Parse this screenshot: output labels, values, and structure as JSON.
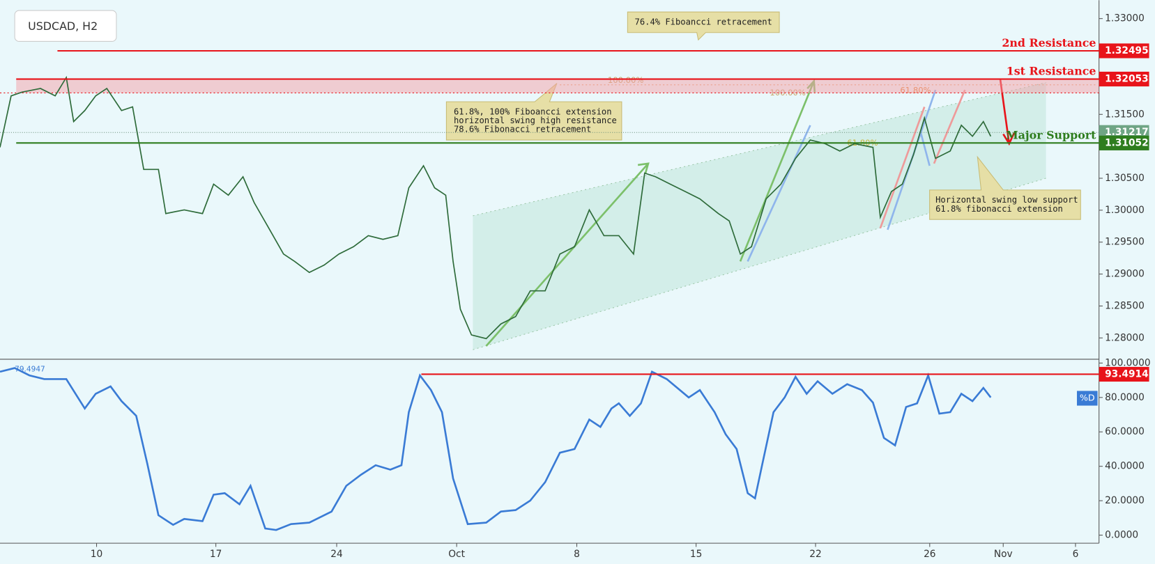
{
  "title": "USDCAD, H2",
  "annotations": [
    "76.4% Fiboancci retracement",
    "61.8%, 100% Fiboancci extension",
    "horizontal swing high resistance",
    "78.6% Fibonacci retracement",
    "Horizontal swing low support",
    "61.8% fibonacci extension"
  ],
  "fib_labels": [
    "100.00%",
    "100.00%",
    "61.80%",
    "61.80%"
  ],
  "chart_data": [
    {
      "type": "line",
      "xlim": [
        0,
        64.22
      ],
      "ylim": [
        1.27666,
        1.33288
      ],
      "yticks": [
        {
          "value": 1.28,
          "label": "1.28000"
        },
        {
          "value": 1.285,
          "label": "1.28500"
        },
        {
          "value": 1.29,
          "label": "1.29000"
        },
        {
          "value": 1.295,
          "label": "1.29500"
        },
        {
          "value": 1.3,
          "label": "1.30000"
        },
        {
          "value": 1.305,
          "label": "1.30500"
        },
        {
          "value": 1.31,
          "label": "1.31000"
        },
        {
          "value": 1.315,
          "label": "1.31500"
        },
        {
          "value": 1.32,
          "label": "1.32000"
        },
        {
          "value": 1.325,
          "label": "1.32500"
        },
        {
          "value": 1.33,
          "label": "1.33000"
        }
      ],
      "x": [
        0,
        0.65,
        1.29,
        2.37,
        3.23,
        3.88,
        4.31,
        4.96,
        5.6,
        6.25,
        7.11,
        7.76,
        8.41,
        9.27,
        9.7,
        10.78,
        11.85,
        12.5,
        13.36,
        14.22,
        14.87,
        15.73,
        16.59,
        17.24,
        18.1,
        18.97,
        19.83,
        20.69,
        21.55,
        22.41,
        23.28,
        23.92,
        24.78,
        25.43,
        26.08,
        26.51,
        26.94,
        27.59,
        28.45,
        29.31,
        30.17,
        31.03,
        31.9,
        32.76,
        33.62,
        34.48,
        35.34,
        36.21,
        37.07,
        37.72,
        38.36,
        39.22,
        40.09,
        40.95,
        42.03,
        42.67,
        43.32,
        43.97,
        44.83,
        45.69,
        46.55,
        47.41,
        48.28,
        49.14,
        50,
        51.08,
        51.51,
        52.16,
        52.8,
        53.45,
        54.09,
        54.74,
        55.6,
        56.25,
        56.9,
        57.54,
        57.97
      ],
      "series": [
        {
          "color": "#2e6b3a",
          "values": [
            1.30984,
            1.3179,
            1.31848,
            1.31906,
            1.3179,
            1.32078,
            1.31387,
            1.3156,
            1.3179,
            1.31906,
            1.3156,
            1.31618,
            1.30638,
            1.30638,
            1.29947,
            1.30005,
            1.29947,
            1.30408,
            1.30235,
            1.30523,
            1.3012,
            1.29717,
            1.29313,
            1.29198,
            1.29025,
            1.29141,
            1.29313,
            1.29429,
            1.29601,
            1.29544,
            1.29601,
            1.3035,
            1.30696,
            1.3035,
            1.30235,
            1.29198,
            1.28449,
            1.28046,
            1.27988,
            1.28219,
            1.28334,
            1.28737,
            1.28737,
            1.29313,
            1.29429,
            1.30005,
            1.29601,
            1.29601,
            1.29313,
            1.30581,
            1.30523,
            1.30408,
            1.30293,
            1.30177,
            1.29947,
            1.29832,
            1.29313,
            1.29429,
            1.30177,
            1.30408,
            1.30811,
            1.31099,
            1.31041,
            1.30926,
            1.31041,
            1.30984,
            1.29889,
            1.30293,
            1.30408,
            1.30869,
            1.31445,
            1.30811,
            1.30926,
            1.31329,
            1.31157,
            1.31387,
            1.31157
          ]
        }
      ],
      "levels": [
        {
          "name": "2nd Resistance",
          "value": 1.32495,
          "color": "#e8141a"
        },
        {
          "name": "1st Resistance",
          "value": 1.32053,
          "color": "#e8141a"
        },
        {
          "name": "Major Support",
          "value": 1.31052,
          "color": "#2e7d1e"
        }
      ],
      "zone": [
        1.31836,
        1.32053
      ],
      "price_marker": 1.31217
    },
    {
      "type": "line",
      "xlim": [
        0,
        64.22
      ],
      "ylim": [
        -4.7,
        102.2
      ],
      "yticks": [
        {
          "value": 0,
          "label": "0.0000"
        },
        {
          "value": 20,
          "label": "20.0000"
        },
        {
          "value": 40,
          "label": "40.0000"
        },
        {
          "value": 60,
          "label": "60.0000"
        },
        {
          "value": 80,
          "label": "80.0000"
        },
        {
          "value": 100,
          "label": "100.0000"
        }
      ],
      "xticks": [
        {
          "value": 5.65,
          "label": "10"
        },
        {
          "value": 12.63,
          "label": "17"
        },
        {
          "value": 19.7,
          "label": "24"
        },
        {
          "value": 26.72,
          "label": "Oct"
        },
        {
          "value": 33.75,
          "label": "8"
        },
        {
          "value": 40.73,
          "label": "15"
        },
        {
          "value": 47.72,
          "label": "22"
        },
        {
          "value": 54.4,
          "label": "26"
        },
        {
          "value": 58.7,
          "label": "Nov"
        },
        {
          "value": 62.93,
          "label": "6"
        }
      ],
      "readout": 79.4947,
      "x": [
        0,
        0.86,
        1.72,
        2.59,
        3.88,
        4.96,
        5.6,
        6.47,
        7.11,
        7.97,
        8.62,
        9.27,
        10.13,
        10.78,
        11.85,
        12.5,
        13.15,
        14.01,
        14.66,
        15.52,
        16.16,
        17.03,
        18.1,
        19.4,
        20.26,
        21.12,
        21.98,
        22.84,
        23.49,
        23.92,
        24.57,
        25.22,
        25.86,
        26.51,
        27.37,
        28.45,
        29.31,
        30.17,
        31.03,
        31.9,
        32.76,
        33.62,
        34.48,
        35.13,
        35.78,
        36.21,
        36.85,
        37.5,
        38.15,
        39.01,
        40.3,
        40.95,
        41.81,
        42.46,
        43.1,
        43.75,
        44.18,
        44.61,
        45.26,
        45.91,
        46.55,
        47.2,
        47.84,
        48.71,
        49.57,
        50.43,
        51.08,
        51.72,
        52.37,
        53.02,
        53.66,
        54.31,
        54.96,
        55.6,
        56.25,
        56.9,
        57.54,
        57.97
      ],
      "series": [
        {
          "name": "%D",
          "color": "#3a7bd5",
          "values": [
            94.97,
            97.11,
            92.83,
            90.7,
            90.7,
            73.58,
            82.14,
            86.42,
            77.86,
            69.3,
            41.5,
            11.55,
            5.99,
            9.41,
            8.13,
            23.53,
            24.39,
            17.97,
            28.66,
            3.85,
            2.99,
            6.42,
            7.27,
            13.69,
            28.66,
            35.08,
            40.64,
            38.07,
            40.64,
            71.44,
            92.83,
            84.28,
            71.44,
            32.94,
            6.42,
            7.27,
            13.69,
            14.55,
            20.11,
            30.8,
            47.91,
            50.05,
            67.17,
            62.89,
            73.58,
            76.58,
            69.3,
            76.58,
            94.97,
            90.7,
            80,
            84.28,
            71.44,
            58.61,
            50.05,
            24.39,
            21.39,
            41.5,
            71.44,
            80,
            91.98,
            82.14,
            89.41,
            82.14,
            87.7,
            84.28,
            77,
            56.47,
            52.19,
            74.44,
            76.58,
            92.83,
            70.59,
            71.44,
            82.14,
            77.86,
            85.56,
            80
          ]
        }
      ],
      "level": {
        "value": 93.4914,
        "color": "#e8141a"
      }
    }
  ]
}
